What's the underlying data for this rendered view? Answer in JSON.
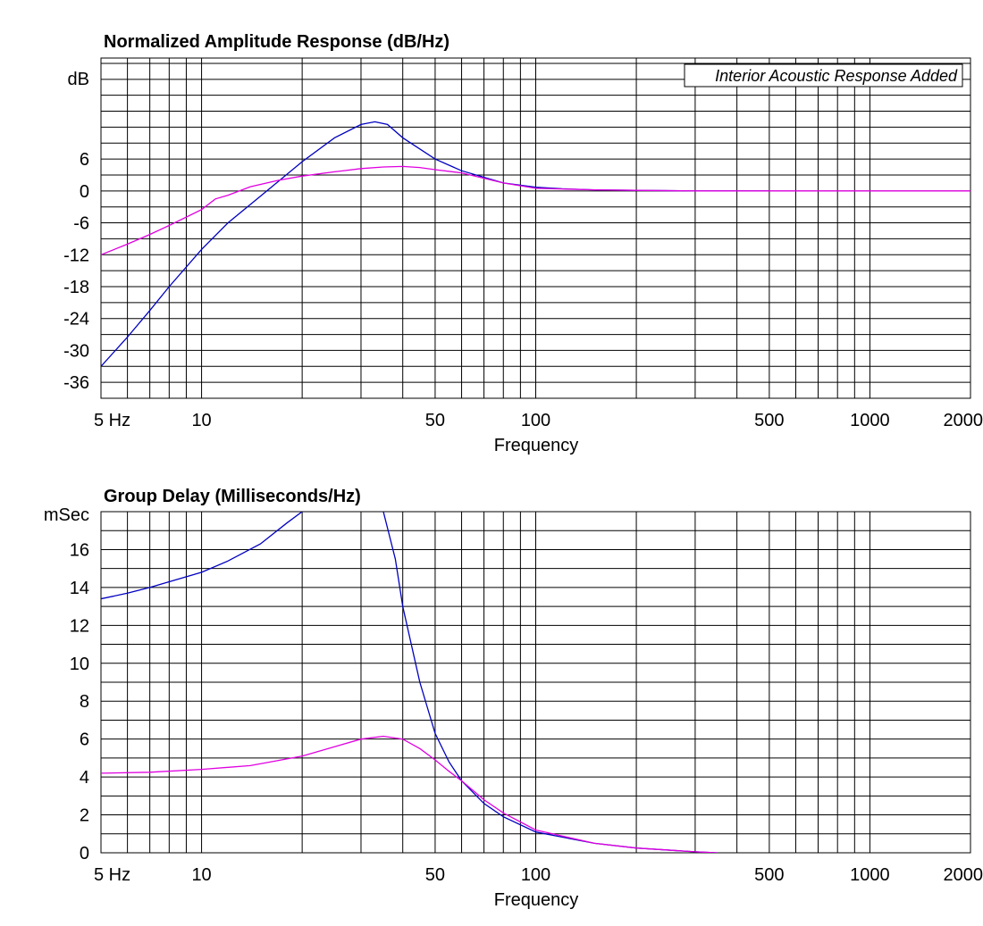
{
  "chart_data": [
    {
      "type": "line",
      "title": "Normalized Amplitude Response (dB/Hz)",
      "xlabel": "Frequency",
      "ylabel": "dB",
      "x_scale": "log",
      "xlim": [
        5,
        2000
      ],
      "ylim": [
        -39,
        25
      ],
      "grid": true,
      "x_ticks": [
        5,
        10,
        50,
        100,
        500,
        1000,
        2000
      ],
      "x_tick_labels": [
        "5  Hz",
        "10",
        "50",
        "100",
        "500",
        "1000",
        "2000"
      ],
      "y_ticks": [
        6,
        0,
        -6,
        -12,
        -18,
        -24,
        -30,
        -36
      ],
      "y_tick_labels": [
        "6",
        "0",
        "-6",
        "-12",
        "-18",
        "-24",
        "-30",
        "-36"
      ],
      "annotation": "Interior Acoustic Response Added",
      "series": [
        {
          "color": "#0000c0",
          "x": [
            5,
            6,
            7,
            8,
            10,
            12,
            15,
            20,
            25,
            30,
            33,
            36,
            40,
            50,
            60,
            80,
            100,
            120,
            150,
            200,
            300,
            500
          ],
          "y": [
            -33,
            -27.5,
            -22.5,
            -18,
            -11,
            -6,
            -1,
            5.5,
            10,
            12.5,
            13,
            12.5,
            10,
            6,
            3.8,
            1.5,
            0.7,
            0.4,
            0.2,
            0.1,
            0,
            0
          ]
        },
        {
          "color": "#e000e0",
          "x": [
            5,
            6,
            7,
            8,
            10,
            11,
            12,
            14,
            17,
            20,
            25,
            30,
            35,
            40,
            45,
            50,
            60,
            80,
            100,
            150,
            200,
            300,
            500,
            1000,
            2000
          ],
          "y": [
            -12,
            -10,
            -8.2,
            -6.5,
            -3.5,
            -1.5,
            -0.8,
            0.8,
            2,
            2.8,
            3.6,
            4.2,
            4.5,
            4.6,
            4.4,
            4,
            3.4,
            1.5,
            0.5,
            0.2,
            0.1,
            0,
            0,
            0,
            0
          ]
        }
      ]
    },
    {
      "type": "line",
      "title": "Group Delay (Milliseconds/Hz)",
      "xlabel": "Frequency",
      "ylabel": "mSec",
      "x_scale": "log",
      "xlim": [
        5,
        2000
      ],
      "ylim": [
        0,
        18
      ],
      "grid": true,
      "x_ticks": [
        5,
        10,
        50,
        100,
        500,
        1000,
        2000
      ],
      "x_tick_labels": [
        "5  Hz",
        "10",
        "50",
        "100",
        "500",
        "1000",
        "2000"
      ],
      "y_ticks": [
        16,
        14,
        12,
        10,
        8,
        6,
        4,
        2,
        0
      ],
      "y_tick_labels": [
        "16",
        "14",
        "12",
        "10",
        "8",
        "6",
        "4",
        "2",
        "0"
      ],
      "series": [
        {
          "color": "#0000c0",
          "x": [
            5,
            6,
            7,
            8,
            10,
            12,
            15,
            18,
            20
          ],
          "y": [
            13.4,
            13.7,
            14,
            14.3,
            14.8,
            15.4,
            16.3,
            17.4,
            18
          ]
        },
        {
          "color": "#0000c0",
          "x": [
            35,
            38,
            40,
            45,
            50,
            55,
            60,
            70,
            80,
            100,
            150,
            200,
            300,
            350
          ],
          "y": [
            18,
            15.5,
            13,
            9,
            6.3,
            4.8,
            3.8,
            2.6,
            1.9,
            1.1,
            0.5,
            0.25,
            0.05,
            0
          ]
        },
        {
          "color": "#e000e0",
          "x": [
            5,
            7,
            10,
            14,
            20,
            25,
            30,
            35,
            40,
            45,
            50,
            55,
            60,
            70,
            80,
            100,
            150,
            200,
            300,
            350
          ],
          "y": [
            4.2,
            4.25,
            4.4,
            4.6,
            5.1,
            5.6,
            6,
            6.15,
            6,
            5.5,
            4.9,
            4.3,
            3.8,
            2.8,
            2.1,
            1.2,
            0.5,
            0.25,
            0.05,
            0
          ]
        }
      ]
    }
  ]
}
